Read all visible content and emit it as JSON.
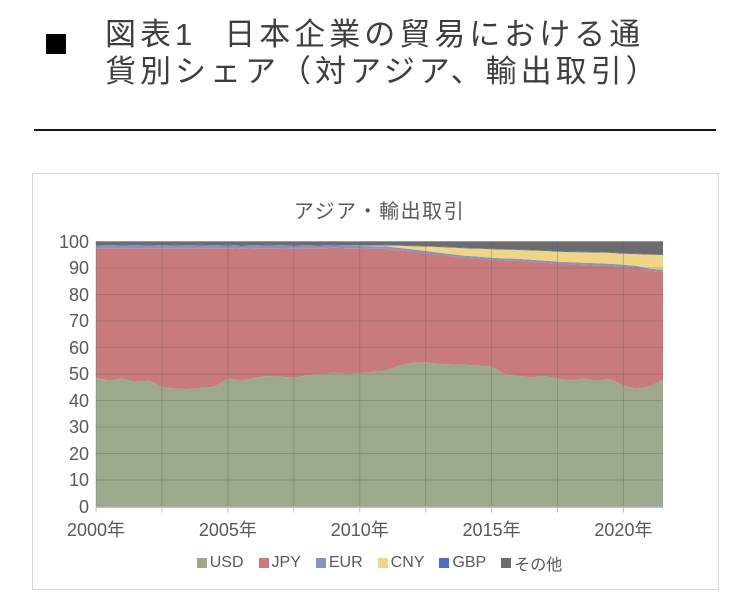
{
  "header": {
    "bullet_icon": "black-square-bullet",
    "figure_label": "図表1",
    "title_line1": "日本企業の貿易における通",
    "title_line2": "貨別シェア（対アジア、輸出取引）"
  },
  "chart": {
    "y_ticks": [
      "0",
      "10",
      "20",
      "30",
      "40",
      "50",
      "60",
      "70",
      "80",
      "90",
      "100"
    ],
    "y_tick_values": [
      0,
      10,
      20,
      30,
      40,
      50,
      60,
      70,
      80,
      90,
      100
    ],
    "x_ticks": [
      {
        "label": "2000年",
        "year": 2000
      },
      {
        "label": "2005年",
        "year": 2005
      },
      {
        "label": "2010年",
        "year": 2010
      },
      {
        "label": "2015年",
        "year": 2015
      },
      {
        "label": "2020年",
        "year": 2020
      }
    ],
    "colors": {
      "grid_overlay": "rgba(89,89,89,0.30)",
      "axis": "#bfbfbf",
      "text": "#595959"
    }
  },
  "chart_data": {
    "type": "area",
    "stacked": true,
    "stack_total": 100,
    "title": "アジア・輸出取引",
    "xlabel": "",
    "ylabel": "",
    "ylim": [
      0,
      100
    ],
    "xlim": [
      2000,
      2021.5
    ],
    "grid": true,
    "legend_position": "bottom",
    "x_unit": "half-year",
    "x": [
      2000.0,
      2000.5,
      2001.0,
      2001.5,
      2002.0,
      2002.5,
      2003.0,
      2003.5,
      2004.0,
      2004.5,
      2005.0,
      2005.5,
      2006.0,
      2006.5,
      2007.0,
      2007.5,
      2008.0,
      2008.5,
      2009.0,
      2009.5,
      2010.0,
      2010.5,
      2011.0,
      2011.5,
      2012.0,
      2012.5,
      2013.0,
      2013.5,
      2014.0,
      2014.5,
      2015.0,
      2015.5,
      2016.0,
      2016.5,
      2017.0,
      2017.5,
      2018.0,
      2018.5,
      2019.0,
      2019.5,
      2020.0,
      2020.5,
      2021.0,
      2021.5
    ],
    "series": [
      {
        "name": "USD",
        "color": "#9CA98C",
        "values": [
          48.5,
          47.5,
          48.3,
          47.0,
          47.5,
          45.2,
          44.5,
          44.3,
          44.8,
          45.2,
          48.3,
          47.4,
          48.6,
          49.2,
          49.0,
          48.6,
          49.5,
          49.8,
          50.5,
          50.2,
          50.3,
          50.8,
          51.2,
          53.2,
          54.2,
          54.5,
          53.8,
          53.6,
          53.5,
          53.1,
          52.8,
          49.8,
          49.3,
          48.7,
          49.3,
          48.3,
          47.6,
          48.3,
          47.5,
          48.1,
          45.6,
          44.5,
          45.3,
          48.0
        ]
      },
      {
        "name": "JPY",
        "color": "#C97A7C",
        "values": [
          49.0,
          49.9,
          49.2,
          50.4,
          50.0,
          52.2,
          53.0,
          53.1,
          52.7,
          52.2,
          49.2,
          49.9,
          48.8,
          48.3,
          48.4,
          48.7,
          48.0,
          47.6,
          47.1,
          47.3,
          47.1,
          46.5,
          46.0,
          43.5,
          41.9,
          41.0,
          41.2,
          40.8,
          40.3,
          40.4,
          40.3,
          43.0,
          43.4,
          43.6,
          42.7,
          43.3,
          43.8,
          42.9,
          43.5,
          42.7,
          44.8,
          45.5,
          43.6,
          40.6
        ]
      },
      {
        "name": "EUR",
        "color": "#8793BC",
        "values": [
          1.0,
          1.0,
          1.0,
          1.0,
          1.0,
          1.0,
          1.0,
          1.0,
          1.0,
          1.0,
          1.0,
          1.0,
          1.0,
          1.0,
          1.0,
          1.0,
          0.9,
          0.9,
          0.9,
          0.9,
          0.9,
          0.9,
          0.9,
          0.9,
          0.9,
          0.9,
          0.8,
          0.8,
          0.8,
          0.8,
          0.8,
          0.8,
          0.8,
          0.8,
          0.8,
          0.8,
          0.8,
          0.8,
          0.8,
          0.8,
          0.8,
          0.8,
          0.8,
          0.8
        ]
      },
      {
        "name": "CNY",
        "color": "#EFD584",
        "values": [
          0.0,
          0.0,
          0.0,
          0.0,
          0.0,
          0.0,
          0.0,
          0.0,
          0.0,
          0.0,
          0.0,
          0.0,
          0.0,
          0.0,
          0.0,
          0.0,
          0.0,
          0.0,
          0.0,
          0.0,
          0.1,
          0.2,
          0.4,
          0.8,
          1.2,
          1.7,
          2.1,
          2.5,
          2.8,
          3.0,
          3.2,
          3.3,
          3.3,
          3.5,
          3.6,
          3.7,
          3.8,
          3.9,
          4.0,
          4.1,
          4.2,
          4.4,
          5.3,
          5.5
        ]
      },
      {
        "name": "GBP",
        "color": "#4D6DC0",
        "values": [
          0.2,
          0.2,
          0.2,
          0.2,
          0.2,
          0.2,
          0.2,
          0.2,
          0.2,
          0.2,
          0.2,
          0.2,
          0.2,
          0.2,
          0.2,
          0.2,
          0.2,
          0.2,
          0.2,
          0.2,
          0.2,
          0.2,
          0.2,
          0.2,
          0.2,
          0.2,
          0.2,
          0.2,
          0.2,
          0.2,
          0.2,
          0.2,
          0.2,
          0.2,
          0.2,
          0.2,
          0.2,
          0.2,
          0.2,
          0.2,
          0.2,
          0.2,
          0.2,
          0.2
        ]
      },
      {
        "name": "その他",
        "color": "#6C6C6E",
        "values": [
          1.3,
          1.4,
          1.3,
          1.4,
          1.3,
          1.4,
          1.3,
          1.4,
          1.3,
          1.4,
          1.3,
          1.5,
          1.4,
          1.3,
          1.4,
          1.5,
          1.4,
          1.5,
          1.3,
          1.4,
          1.4,
          1.4,
          1.3,
          1.4,
          1.6,
          1.7,
          1.9,
          2.1,
          2.4,
          2.5,
          2.7,
          2.9,
          3.0,
          3.2,
          3.4,
          3.7,
          3.8,
          3.9,
          4.0,
          4.1,
          4.4,
          4.6,
          4.8,
          4.9
        ]
      }
    ]
  }
}
